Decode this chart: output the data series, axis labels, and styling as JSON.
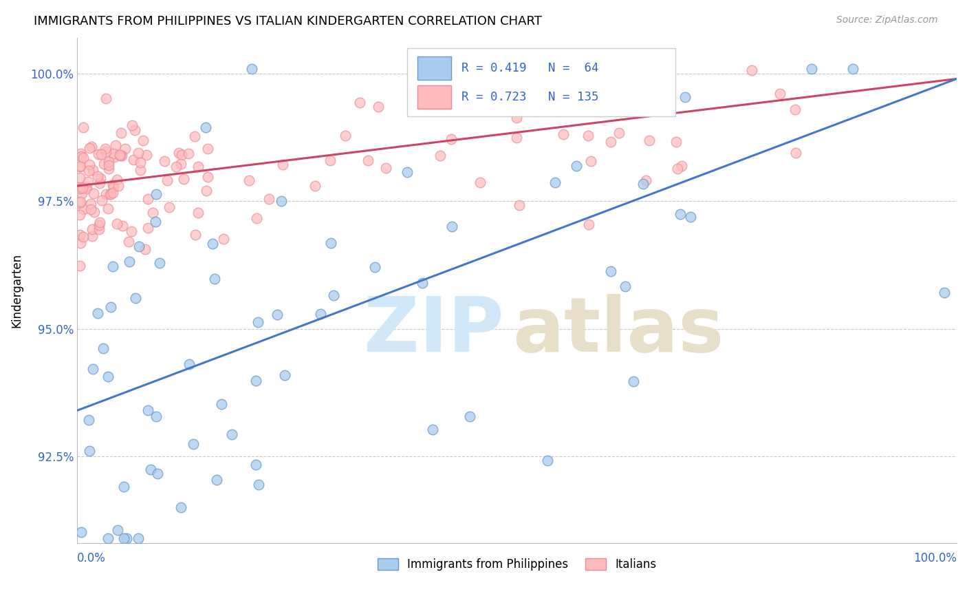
{
  "title": "IMMIGRANTS FROM PHILIPPINES VS ITALIAN KINDERGARTEN CORRELATION CHART",
  "source_text": "Source: ZipAtlas.com",
  "ylabel": "Kindergarten",
  "ytick_labels": [
    "92.5%",
    "95.0%",
    "97.5%",
    "100.0%"
  ],
  "ytick_values": [
    0.925,
    0.95,
    0.975,
    1.0
  ],
  "xlim": [
    0.0,
    1.0
  ],
  "ylim": [
    0.908,
    1.007
  ],
  "legend_label_blue": "Immigrants from Philippines",
  "legend_label_pink": "Italians",
  "blue_color_face": "#AACCEE",
  "blue_color_edge": "#6699CC",
  "pink_color_face": "#FFBBBB",
  "pink_color_edge": "#EE8899",
  "blue_line_color": "#4477CC",
  "pink_line_color": "#CC4466",
  "legend_r_blue": "R = 0.419",
  "legend_n_blue": "N =  64",
  "legend_r_pink": "R = 0.723",
  "legend_n_pink": "N = 135",
  "watermark_zip_color": "#D0E8F8",
  "watermark_atlas_color": "#E8DFC8",
  "blue_line_start_y": 0.934,
  "blue_line_end_y": 0.999,
  "pink_line_start_y": 0.978,
  "pink_line_end_y": 0.999
}
